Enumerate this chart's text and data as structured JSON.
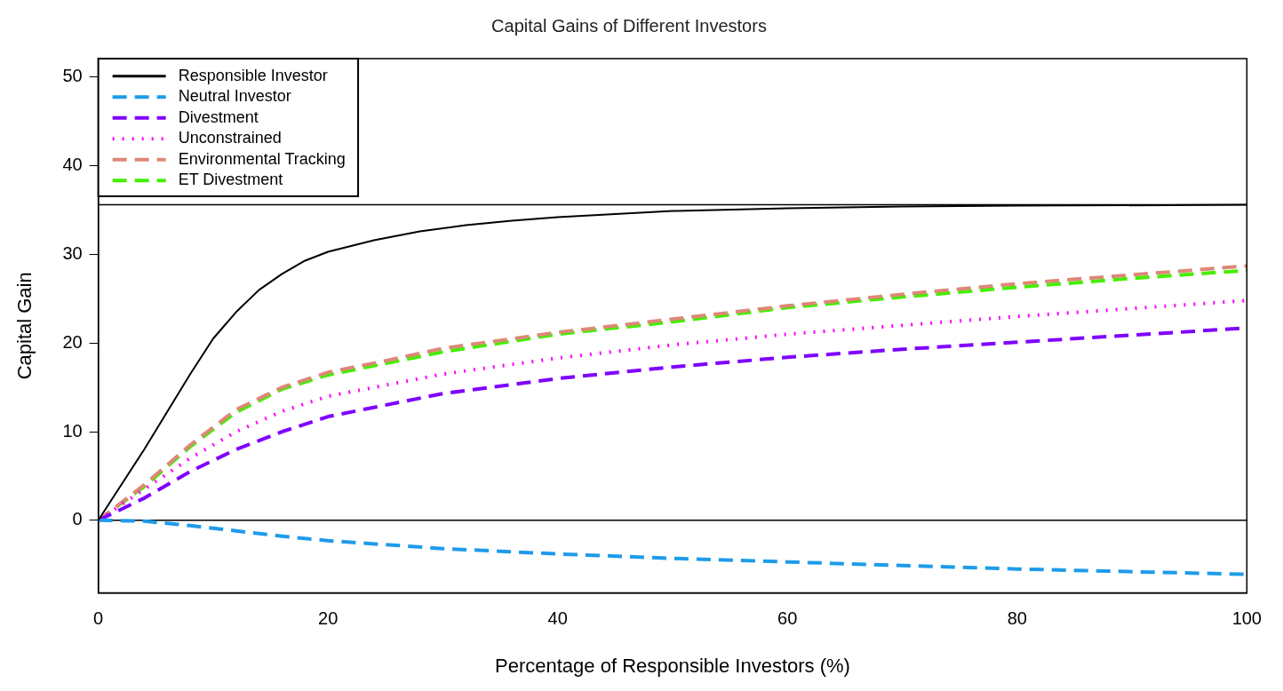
{
  "chart_data": {
    "type": "line",
    "title": "Capital Gains of Different Investors",
    "xlabel": "Percentage of Responsible Investors (%)",
    "ylabel": "Capital Gain",
    "xlim": [
      0,
      100
    ],
    "ylim": [
      -8.2,
      52.1
    ],
    "xticks": [
      0,
      20,
      40,
      60,
      80,
      100
    ],
    "yticks": [
      0,
      10,
      20,
      30,
      40,
      50
    ],
    "grid": false,
    "legend": "top left",
    "marker": "none",
    "ref_lines": [
      {
        "axis": "y",
        "value": 0,
        "color": "#000000"
      },
      {
        "axis": "y",
        "value": 35.6,
        "color": "#000000"
      }
    ],
    "series": [
      {
        "name": "Responsible Investor",
        "color": "#000000",
        "line_style": "solid",
        "x": [
          0,
          4,
          8,
          10,
          12,
          14,
          16,
          18,
          20,
          24,
          28,
          32,
          36,
          40,
          50,
          60,
          70,
          80,
          100
        ],
        "values": [
          0,
          8,
          16.5,
          20.5,
          23.5,
          26,
          27.8,
          29.3,
          30.3,
          31.6,
          32.6,
          33.3,
          33.8,
          34.2,
          34.9,
          35.2,
          35.4,
          35.5,
          35.6
        ]
      },
      {
        "name": "Neutral Investor",
        "color": "#1e9be9",
        "line_style": "dashed",
        "x": [
          0,
          4,
          8,
          12,
          16,
          20,
          30,
          40,
          50,
          60,
          70,
          80,
          90,
          100
        ],
        "values": [
          0,
          -0.1,
          -0.6,
          -1.2,
          -1.8,
          -2.3,
          -3.2,
          -3.8,
          -4.3,
          -4.7,
          -5.1,
          -5.5,
          -5.8,
          -6.1
        ]
      },
      {
        "name": "Divestment",
        "color": "#7f00ff",
        "line_style": "dashed",
        "x": [
          0,
          4,
          8,
          12,
          16,
          20,
          25,
          30,
          40,
          50,
          60,
          70,
          80,
          90,
          100
        ],
        "values": [
          0,
          2.5,
          5.5,
          8,
          10,
          11.7,
          13,
          14.3,
          16,
          17.3,
          18.4,
          19.3,
          20.1,
          20.9,
          21.7
        ]
      },
      {
        "name": "Unconstrained",
        "color": "#ff00ff",
        "line_style": "dotted",
        "x": [
          0,
          4,
          8,
          12,
          16,
          20,
          30,
          40,
          50,
          60,
          70,
          80,
          90,
          100
        ],
        "values": [
          0,
          3.5,
          7,
          10,
          12.3,
          14,
          16.5,
          18.3,
          19.8,
          21,
          22,
          23,
          23.9,
          24.8
        ]
      },
      {
        "name": "Environmental Tracking",
        "color": "#dd8877",
        "line_style": "dashed",
        "x": [
          0,
          4,
          8,
          12,
          16,
          20,
          25,
          30,
          40,
          50,
          60,
          70,
          80,
          90,
          100
        ],
        "values": [
          0,
          4,
          8.5,
          12.5,
          15,
          16.7,
          18,
          19.4,
          21.2,
          22.7,
          24.2,
          25.5,
          26.7,
          27.7,
          28.7
        ]
      },
      {
        "name": "ET Divestment",
        "color": "#44ee00",
        "line_style": "dashed",
        "x": [
          0,
          4,
          8,
          12,
          16,
          20,
          25,
          30,
          40,
          50,
          60,
          70,
          80,
          90,
          100
        ],
        "values": [
          0,
          3.8,
          8.3,
          12.2,
          14.8,
          16.4,
          17.7,
          19,
          21,
          22.4,
          24,
          25.2,
          26.3,
          27.3,
          28.2
        ]
      }
    ]
  }
}
